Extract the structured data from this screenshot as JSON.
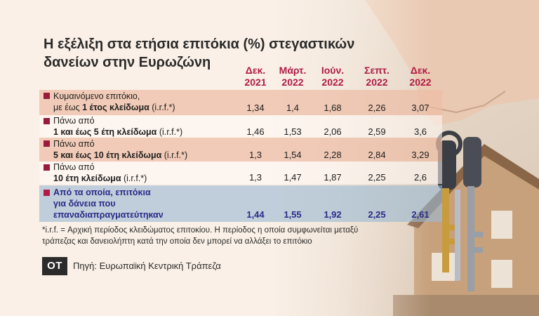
{
  "chart_data": {
    "type": "table",
    "title": "Η εξέλιξη στα ετήσια επιτόκια (%) στεγαστικών δανείων στην Ευρωζώνη",
    "title_lines": [
      "Η εξέλιξη στα ετήσια επιτόκια (%) στεγαστικών",
      "δανείων στην Ευρωζώνη"
    ],
    "columns": [
      {
        "line1": "Δεκ.",
        "line2": "2021"
      },
      {
        "line1": "Μάρτ.",
        "line2": "2022"
      },
      {
        "line1": "Ιούν.",
        "line2": "2022"
      },
      {
        "line1": "Σεπτ.",
        "line2": "2022"
      },
      {
        "line1": "Δεκ.",
        "line2": "2022"
      }
    ],
    "rows": [
      {
        "line1": "Κυμαινόμενο επιτόκιο,",
        "line2_pre": "με έως ",
        "line2_bold": "1 έτος κλείδωμα",
        "line2_post": " (i.r.f.*)",
        "values": [
          "1,34",
          "1,4",
          "1,68",
          "2,26",
          "3,07"
        ]
      },
      {
        "line1": "Πάνω από",
        "line2_pre": "",
        "line2_bold": "1 και έως 5 έτη κλείδωμα",
        "line2_post": " (i.r.f.*)",
        "values": [
          "1,46",
          "1,53",
          "2,06",
          "2,59",
          "3,6"
        ]
      },
      {
        "line1": "Πάνω από",
        "line2_pre": "",
        "line2_bold": "5 και έως 10 έτη κλείδωμα",
        "line2_post": " (i.r.f.*)",
        "values": [
          "1,3",
          "1,54",
          "2,28",
          "2,84",
          "3,29"
        ]
      },
      {
        "line1": "Πάνω από",
        "line2_pre": "",
        "line2_bold": "10 έτη κλείδωμα",
        "line2_post": " (i.r.f.*)",
        "values": [
          "1,3",
          "1,47",
          "1,87",
          "2,25",
          "2,6"
        ]
      }
    ],
    "highlight_row": {
      "lines": [
        "Από τα οποία, επιτόκια",
        "για δάνεια που",
        "επαναδιαπραγματεύτηκαν"
      ],
      "values": [
        "1,44",
        "1,55",
        "1,92",
        "2,25",
        "2,61"
      ]
    }
  },
  "footnote": {
    "line1": "*i.r.f. = Αρχική περίοδος κλειδώματος επιτοκίου. Η περίοδος η οποία συμφωνείται μεταξύ",
    "line2": "τράπεζας και δανειολήπτη κατά  την οποία δεν μπορεί να αλλάξει το επιτόκιο"
  },
  "logo_text": "ΟΤ",
  "source": "Πηγή: Ευρωπαϊκή Κεντρική Τράπεζα",
  "colors": {
    "accent": "#b01c46",
    "highlight_text": "#2a2a88",
    "tinted_row": "#edbda5",
    "highlight_row": "#9bb9d2"
  }
}
